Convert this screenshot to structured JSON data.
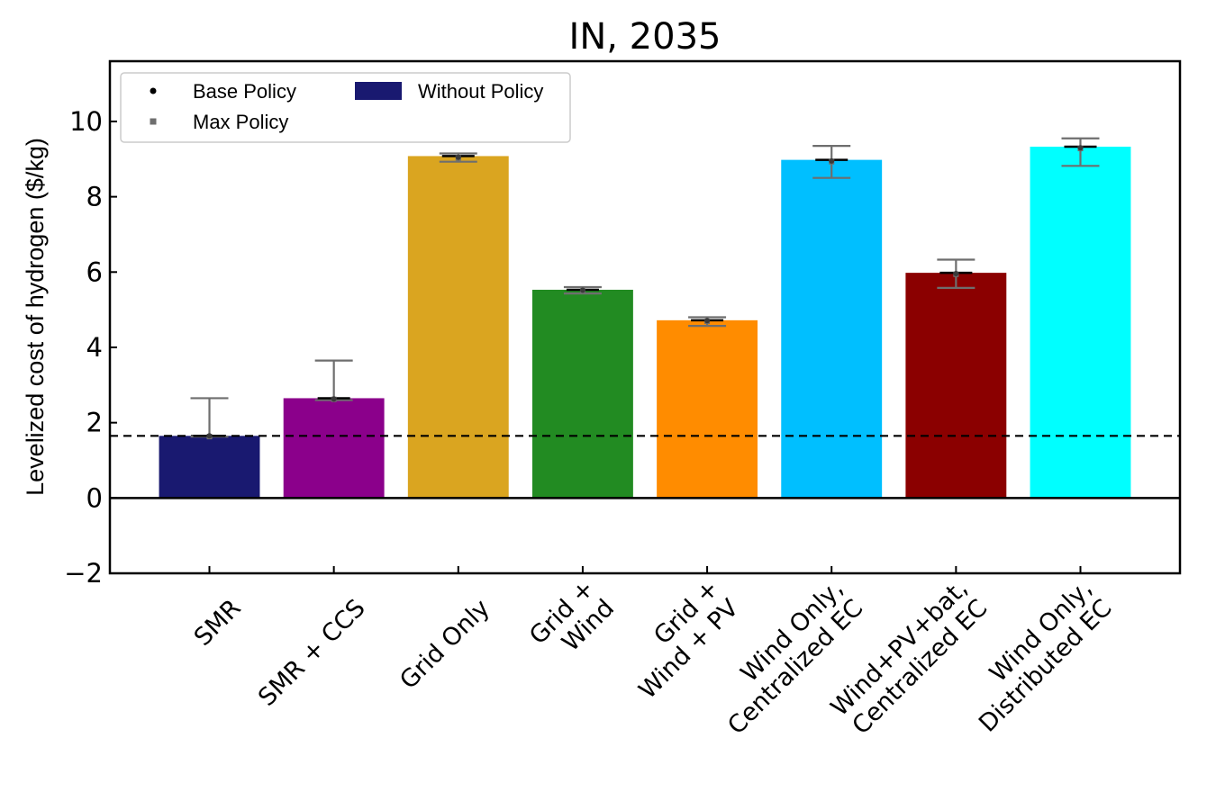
{
  "chart_data": {
    "type": "bar",
    "title": "IN, 2035",
    "ylabel": "Levelized  cost of hydrogen ($/kg)",
    "xlabel": "",
    "ylim": [
      -2,
      11.6
    ],
    "yticks": [
      -2,
      0,
      2,
      4,
      6,
      8,
      10
    ],
    "ytick_labels": [
      "−2",
      "0",
      "2",
      "4",
      "6",
      "8",
      "10"
    ],
    "categories": [
      [
        "SMR"
      ],
      [
        "SMR + CCS"
      ],
      [
        "Grid Only"
      ],
      [
        "Grid +",
        "Wind"
      ],
      [
        "Grid +",
        "Wind + PV"
      ],
      [
        "Wind Only,",
        "Centralized EC"
      ],
      [
        "Wind+PV+bat,",
        "Centralized EC"
      ],
      [
        "Wind Only,",
        "Distributed EC"
      ]
    ],
    "colors": [
      "#191970",
      "#8b008b",
      "#daa520",
      "#228b22",
      "#ff8c00",
      "#00bfff",
      "#8b0000",
      "#00ffff"
    ],
    "series": [
      {
        "name": "Without Policy",
        "values": [
          1.65,
          2.65,
          9.08,
          5.53,
          4.72,
          8.98,
          5.98,
          9.33
        ]
      },
      {
        "name": "Base Policy",
        "values": [
          1.65,
          2.63,
          9.05,
          5.52,
          4.71,
          8.95,
          5.96,
          9.3
        ]
      },
      {
        "name": "Max Policy",
        "values": [
          1.63,
          2.62,
          9.03,
          5.5,
          4.69,
          8.93,
          5.94,
          9.28
        ]
      }
    ],
    "error_ranges": [
      [
        1.63,
        2.65
      ],
      [
        2.6,
        3.65
      ],
      [
        8.93,
        9.15
      ],
      [
        5.43,
        5.6
      ],
      [
        4.57,
        4.8
      ],
      [
        8.5,
        9.35
      ],
      [
        5.58,
        6.33
      ],
      [
        8.82,
        9.55
      ]
    ],
    "reference_line": {
      "y": 1.65,
      "style": "dashed",
      "color": "#000000"
    },
    "zero_line": true,
    "grid": false,
    "legend": {
      "placement": "upper-left",
      "entries": [
        {
          "label": "Base Policy",
          "marker": "circle",
          "color": "#000000"
        },
        {
          "label": "Max Policy",
          "marker": "square",
          "color": "#6e6e6e"
        },
        {
          "label": "Without Policy",
          "marker": "patch",
          "color": "#191970"
        }
      ]
    }
  }
}
